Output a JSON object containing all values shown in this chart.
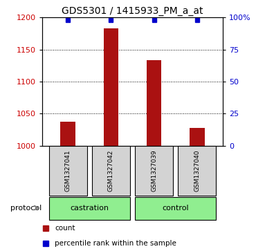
{
  "title": "GDS5301 / 1415933_PM_a_at",
  "samples": [
    "GSM1327041",
    "GSM1327042",
    "GSM1327039",
    "GSM1327040"
  ],
  "counts": [
    1037,
    1183,
    1133,
    1028
  ],
  "percentile_ranks": [
    98,
    98,
    98,
    98
  ],
  "groups": [
    {
      "label": "castration",
      "indices": [
        0,
        1
      ],
      "color": "#90EE90"
    },
    {
      "label": "control",
      "indices": [
        2,
        3
      ],
      "color": "#90EE90"
    }
  ],
  "bar_color": "#AA1111",
  "dot_color": "#0000CC",
  "ylim_left": [
    1000,
    1200
  ],
  "ylim_right": [
    0,
    100
  ],
  "yticks_left": [
    1000,
    1050,
    1100,
    1150,
    1200
  ],
  "yticks_right": [
    0,
    25,
    50,
    75,
    100
  ],
  "sample_box_color": "#D3D3D3",
  "legend_count_color": "#AA1111",
  "legend_dot_color": "#0000CC",
  "axis_label_color_left": "#CC0000",
  "axis_label_color_right": "#0000CC",
  "title_fontsize": 10,
  "bar_width": 0.35
}
